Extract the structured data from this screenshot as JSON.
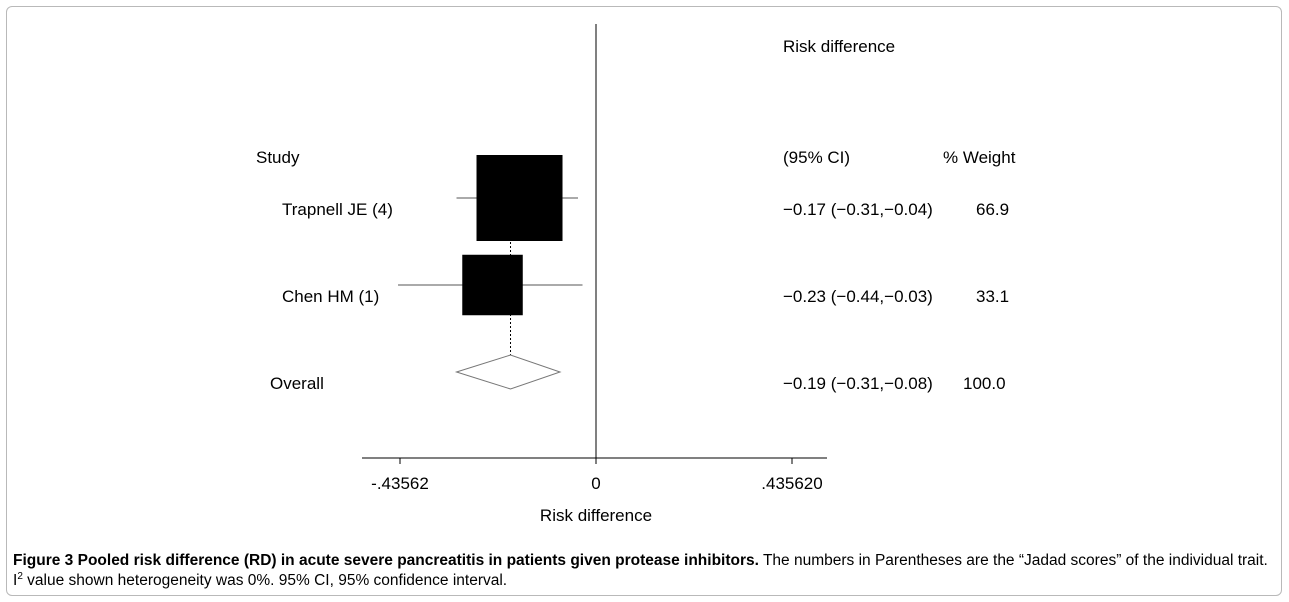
{
  "chart_data": {
    "type": "forest",
    "header": {
      "study_label": "Study",
      "effect_label_line1": "Risk difference",
      "effect_label_line2": "(95% CI)",
      "weight_label": "% Weight"
    },
    "studies": [
      {
        "name": "Trapnell JE (4)",
        "rd": -0.17,
        "ci_low": -0.31,
        "ci_high": -0.04,
        "weight": 66.9,
        "estimate_text": "−0.17 (−0.31,−0.04)",
        "weight_text": "66.9"
      },
      {
        "name": "Chen HM (1)",
        "rd": -0.23,
        "ci_low": -0.44,
        "ci_high": -0.03,
        "weight": 33.1,
        "estimate_text": "−0.23 (−0.44,−0.03)",
        "weight_text": "33.1"
      }
    ],
    "overall": {
      "name": "Overall",
      "rd": -0.19,
      "ci_low": -0.31,
      "ci_high": -0.08,
      "weight": 100.0,
      "estimate_text": "−0.19 (−0.31,−0.08)",
      "weight_text": "100.0"
    },
    "x_axis": {
      "range": [
        -0.43562,
        0.43562
      ],
      "ticks": [
        {
          "value": -0.43562,
          "label": "-.43562"
        },
        {
          "value": 0,
          "label": "0"
        },
        {
          "value": 0.43562,
          "label": ".435620"
        }
      ],
      "title": "Risk difference"
    },
    "reference_line": 0
  },
  "caption": {
    "figure_label": "Figure 3",
    "bold_title": "Pooled risk difference (RD) in acute severe pancreatitis in patients given protease inhibitors.",
    "text_before_sup": "The numbers in Parentheses are the “Jadad scores” of the individual trait. I",
    "sup": "2",
    "text_after_sup": " value shown heterogeneity was 0%. 95% CI, 95% confidence interval."
  }
}
